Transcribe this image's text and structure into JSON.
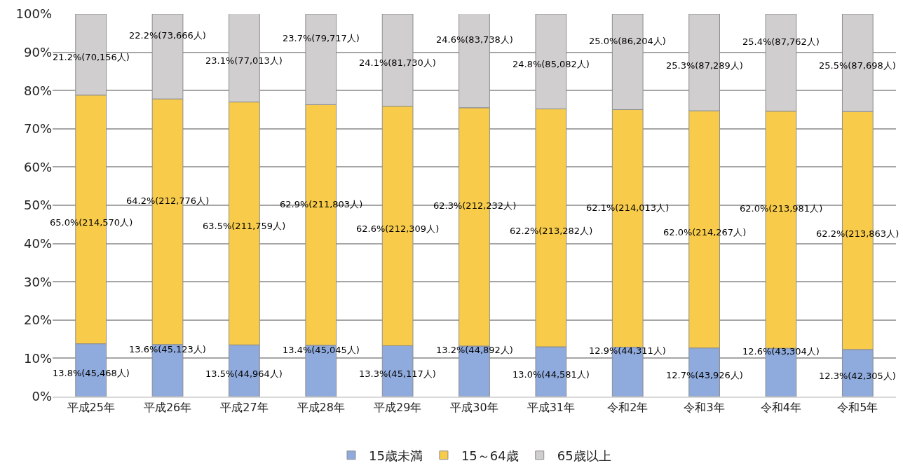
{
  "chart_data": {
    "type": "bar",
    "stacked": true,
    "categories": [
      "平成25年",
      "平成26年",
      "平成27年",
      "平成28年",
      "平成29年",
      "平成30年",
      "平成31年",
      "令和2年",
      "令和3年",
      "令和4年",
      "令和5年"
    ],
    "series": [
      {
        "name": "15歳未満",
        "color": "#8faadc",
        "values": [
          13.8,
          13.6,
          13.5,
          13.4,
          13.3,
          13.2,
          13.0,
          12.9,
          12.7,
          12.6,
          12.3
        ],
        "value_labels": [
          "13.8%(45,468人)",
          "13.6%(45,123人)",
          "13.5%(44,964人)",
          "13.4%(45,045人)",
          "13.3%(45,117人)",
          "13.2%(44,892人)",
          "13.0%(44,581人)",
          "12.9%(44,311人)",
          "12.7%(43,926人)",
          "12.6%(43,304人)",
          "12.3%(42,305人)"
        ]
      },
      {
        "name": "15～64歳",
        "color": "#f8cc4a",
        "values": [
          65.0,
          64.2,
          63.5,
          62.9,
          62.6,
          62.3,
          62.2,
          62.1,
          62.0,
          62.0,
          62.2
        ],
        "value_labels": [
          "65.0%(214,570人)",
          "64.2%(212,776人)",
          "63.5%(211,759人)",
          "62.9%(211,803人)",
          "62.6%(212,309人)",
          "62.3%(212,232人)",
          "62.2%(213,282人)",
          "62.1%(214,013人)",
          "62.0%(214,267人)",
          "62.0%(213,981人)",
          "62.2%(213,863人)"
        ]
      },
      {
        "name": "65歳以上",
        "color": "#d0cece",
        "values": [
          21.2,
          22.2,
          23.1,
          23.7,
          24.1,
          24.6,
          24.8,
          25.0,
          25.3,
          25.4,
          25.5
        ],
        "value_labels": [
          "21.2%(70,156人)",
          "22.2%(73,666人)",
          "23.1%(77,013人)",
          "23.7%(79,717人)",
          "24.1%(81,730人)",
          "24.6%(83,738人)",
          "24.8%(85,082人)",
          "25.0%(86,204人)",
          "25.3%(87,289人)",
          "25.4%(87,762人)",
          "25.5%(87,698人)"
        ]
      }
    ],
    "ylim": [
      0,
      100
    ],
    "yticks": [
      {
        "value": 0,
        "label": "0%"
      },
      {
        "value": 10,
        "label": "10%"
      },
      {
        "value": 20,
        "label": "20%"
      },
      {
        "value": 30,
        "label": "30%"
      },
      {
        "value": 40,
        "label": "40%"
      },
      {
        "value": 50,
        "label": "50%"
      },
      {
        "value": 60,
        "label": "60%"
      },
      {
        "value": 70,
        "label": "70%"
      },
      {
        "value": 80,
        "label": "80%"
      },
      {
        "value": 90,
        "label": "90%"
      },
      {
        "value": 100,
        "label": "100%"
      }
    ],
    "grid": "y",
    "legend": "bottom"
  }
}
